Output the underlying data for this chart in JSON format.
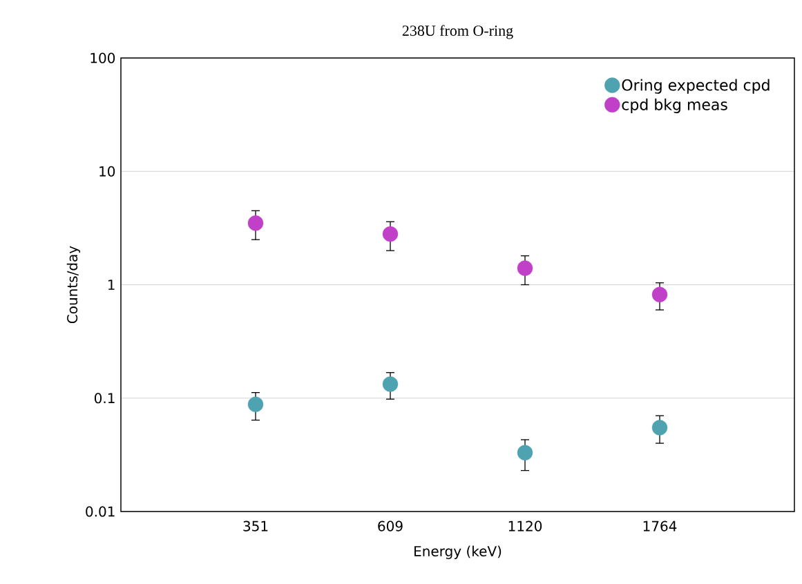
{
  "chart_data": {
    "type": "scatter",
    "title": "238U from O-ring",
    "xlabel": "Energy (keV)",
    "ylabel": "Counts/day",
    "categories": [
      "351",
      "609",
      "1120",
      "1764"
    ],
    "series": [
      {
        "name": "Oring expected cpd",
        "color": "#4fa3b0",
        "values": [
          0.088,
          0.133,
          0.033,
          0.055
        ],
        "errors": [
          0.024,
          0.035,
          0.01,
          0.015
        ]
      },
      {
        "name": "cpd bkg meas",
        "color": "#c040c8",
        "values": [
          3.5,
          2.8,
          1.4,
          0.82
        ],
        "errors": [
          1.0,
          0.8,
          0.4,
          0.22
        ]
      }
    ],
    "log": "y",
    "ylim": [
      0.01,
      100
    ],
    "yticks": [
      0.01,
      0.1,
      1,
      10,
      100
    ],
    "grid": "y",
    "legend": "top right",
    "marker": "circle"
  }
}
